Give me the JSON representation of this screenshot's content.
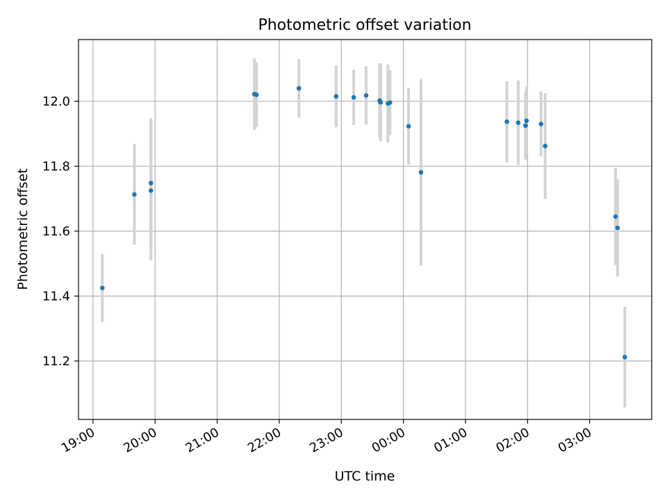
{
  "chart_data": {
    "type": "scatter",
    "title": "Photometric offset variation",
    "xlabel": "UTC time",
    "ylabel": "Photometric offset",
    "grid": true,
    "xlim": [
      "18:46",
      "04:00"
    ],
    "ylim": [
      11.02,
      12.19
    ],
    "x_ticks": [
      "19:00",
      "20:00",
      "21:00",
      "22:00",
      "23:00",
      "00:00",
      "01:00",
      "02:00",
      "03:00"
    ],
    "y_ticks": [
      11.2,
      11.4,
      11.6,
      11.8,
      12.0
    ],
    "colors": {
      "point": "#1f77b4",
      "errorbar": "#d3d3d3"
    },
    "points": [
      {
        "x": "19:09",
        "y": 11.425,
        "err": 0.105
      },
      {
        "x": "19:40",
        "y": 11.713,
        "err": 0.155
      },
      {
        "x": "19:56",
        "y": 11.725,
        "err": 0.215
      },
      {
        "x": "19:56",
        "y": 11.748,
        "err": 0.2
      },
      {
        "x": "21:36",
        "y": 12.022,
        "err": 0.11
      },
      {
        "x": "21:38",
        "y": 12.02,
        "err": 0.1
      },
      {
        "x": "22:19",
        "y": 12.04,
        "err": 0.09
      },
      {
        "x": "22:55",
        "y": 12.015,
        "err": 0.095
      },
      {
        "x": "23:12",
        "y": 12.012,
        "err": 0.085
      },
      {
        "x": "23:24",
        "y": 12.018,
        "err": 0.09
      },
      {
        "x": "23:37",
        "y": 12.002,
        "err": 0.115
      },
      {
        "x": "23:38",
        "y": 11.997,
        "err": 0.12
      },
      {
        "x": "23:45",
        "y": 11.993,
        "err": 0.12
      },
      {
        "x": "23:47",
        "y": 11.996,
        "err": 0.1
      },
      {
        "x": "00:05",
        "y": 11.923,
        "err": 0.118
      },
      {
        "x": "00:17",
        "y": 11.781,
        "err": 0.287
      },
      {
        "x": "01:40",
        "y": 11.937,
        "err": 0.125
      },
      {
        "x": "01:51",
        "y": 11.934,
        "err": 0.13
      },
      {
        "x": "01:58",
        "y": 11.925,
        "err": 0.105
      },
      {
        "x": "01:59",
        "y": 11.94,
        "err": 0.105
      },
      {
        "x": "02:13",
        "y": 11.93,
        "err": 0.1
      },
      {
        "x": "02:17",
        "y": 11.862,
        "err": 0.163
      },
      {
        "x": "03:25",
        "y": 11.645,
        "err": 0.15
      },
      {
        "x": "03:27",
        "y": 11.61,
        "err": 0.15
      },
      {
        "x": "03:34",
        "y": 11.212,
        "err": 0.155
      }
    ]
  }
}
